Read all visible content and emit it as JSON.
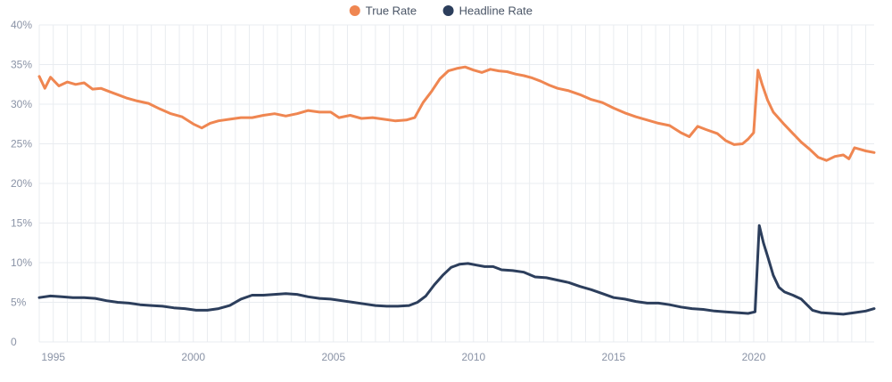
{
  "chart_data": {
    "type": "line",
    "x_unit": "year",
    "xlim": [
      1994.5,
      2024.3
    ],
    "ylim": [
      0,
      40
    ],
    "y_ticks": [
      "0",
      "5%",
      "10%",
      "15%",
      "20%",
      "25%",
      "30%",
      "35%",
      "40%"
    ],
    "x_ticks": [
      "1995",
      "2000",
      "2005",
      "2010",
      "2015",
      "2020"
    ],
    "legend_position": "top-center",
    "grid": true,
    "series": [
      {
        "name": "True Rate",
        "color": "#ef8651",
        "points": [
          [
            1994.5,
            33.5
          ],
          [
            1994.7,
            32.0
          ],
          [
            1994.9,
            33.4
          ],
          [
            1995.2,
            32.3
          ],
          [
            1995.5,
            32.8
          ],
          [
            1995.8,
            32.5
          ],
          [
            1996.1,
            32.7
          ],
          [
            1996.4,
            31.9
          ],
          [
            1996.7,
            32.0
          ],
          [
            1997.0,
            31.6
          ],
          [
            1997.3,
            31.2
          ],
          [
            1997.6,
            30.8
          ],
          [
            1998.0,
            30.4
          ],
          [
            1998.4,
            30.1
          ],
          [
            1998.8,
            29.4
          ],
          [
            1999.2,
            28.8
          ],
          [
            1999.6,
            28.4
          ],
          [
            2000.0,
            27.5
          ],
          [
            2000.3,
            27.0
          ],
          [
            2000.6,
            27.6
          ],
          [
            2000.9,
            27.9
          ],
          [
            2001.3,
            28.1
          ],
          [
            2001.7,
            28.3
          ],
          [
            2002.1,
            28.3
          ],
          [
            2002.5,
            28.6
          ],
          [
            2002.9,
            28.8
          ],
          [
            2003.3,
            28.5
          ],
          [
            2003.7,
            28.8
          ],
          [
            2004.1,
            29.2
          ],
          [
            2004.5,
            29.0
          ],
          [
            2004.9,
            29.0
          ],
          [
            2005.2,
            28.3
          ],
          [
            2005.6,
            28.6
          ],
          [
            2006.0,
            28.2
          ],
          [
            2006.4,
            28.3
          ],
          [
            2006.8,
            28.1
          ],
          [
            2007.2,
            27.9
          ],
          [
            2007.6,
            28.0
          ],
          [
            2007.9,
            28.3
          ],
          [
            2008.2,
            30.2
          ],
          [
            2008.5,
            31.6
          ],
          [
            2008.8,
            33.2
          ],
          [
            2009.1,
            34.2
          ],
          [
            2009.4,
            34.5
          ],
          [
            2009.7,
            34.7
          ],
          [
            2010.0,
            34.3
          ],
          [
            2010.3,
            34.0
          ],
          [
            2010.6,
            34.4
          ],
          [
            2010.9,
            34.2
          ],
          [
            2011.2,
            34.1
          ],
          [
            2011.5,
            33.8
          ],
          [
            2011.8,
            33.6
          ],
          [
            2012.1,
            33.3
          ],
          [
            2012.4,
            32.9
          ],
          [
            2012.7,
            32.4
          ],
          [
            2013.0,
            32.0
          ],
          [
            2013.4,
            31.7
          ],
          [
            2013.8,
            31.2
          ],
          [
            2014.2,
            30.6
          ],
          [
            2014.6,
            30.2
          ],
          [
            2015.0,
            29.5
          ],
          [
            2015.4,
            28.9
          ],
          [
            2015.8,
            28.4
          ],
          [
            2016.2,
            28.0
          ],
          [
            2016.6,
            27.6
          ],
          [
            2017.0,
            27.3
          ],
          [
            2017.4,
            26.4
          ],
          [
            2017.7,
            25.9
          ],
          [
            2018.0,
            27.2
          ],
          [
            2018.3,
            26.8
          ],
          [
            2018.7,
            26.3
          ],
          [
            2019.0,
            25.4
          ],
          [
            2019.3,
            24.9
          ],
          [
            2019.6,
            25.0
          ],
          [
            2019.8,
            25.6
          ],
          [
            2020.0,
            26.4
          ],
          [
            2020.15,
            34.3
          ],
          [
            2020.3,
            32.5
          ],
          [
            2020.5,
            30.5
          ],
          [
            2020.7,
            29.0
          ],
          [
            2020.9,
            28.2
          ],
          [
            2021.1,
            27.4
          ],
          [
            2021.4,
            26.3
          ],
          [
            2021.7,
            25.2
          ],
          [
            2022.0,
            24.3
          ],
          [
            2022.3,
            23.3
          ],
          [
            2022.6,
            22.9
          ],
          [
            2022.9,
            23.4
          ],
          [
            2023.2,
            23.6
          ],
          [
            2023.4,
            23.1
          ],
          [
            2023.6,
            24.5
          ],
          [
            2023.8,
            24.3
          ],
          [
            2024.0,
            24.1
          ],
          [
            2024.3,
            23.9
          ]
        ]
      },
      {
        "name": "Headline Rate",
        "color": "#2c3e5c",
        "points": [
          [
            1994.5,
            5.6
          ],
          [
            1994.9,
            5.8
          ],
          [
            1995.3,
            5.7
          ],
          [
            1995.7,
            5.6
          ],
          [
            1996.1,
            5.6
          ],
          [
            1996.5,
            5.5
          ],
          [
            1996.9,
            5.2
          ],
          [
            1997.3,
            5.0
          ],
          [
            1997.7,
            4.9
          ],
          [
            1998.1,
            4.7
          ],
          [
            1998.5,
            4.6
          ],
          [
            1998.9,
            4.5
          ],
          [
            1999.3,
            4.3
          ],
          [
            1999.7,
            4.2
          ],
          [
            2000.1,
            4.0
          ],
          [
            2000.5,
            4.0
          ],
          [
            2000.9,
            4.2
          ],
          [
            2001.3,
            4.6
          ],
          [
            2001.7,
            5.4
          ],
          [
            2002.1,
            5.9
          ],
          [
            2002.5,
            5.9
          ],
          [
            2002.9,
            6.0
          ],
          [
            2003.3,
            6.1
          ],
          [
            2003.7,
            6.0
          ],
          [
            2004.1,
            5.7
          ],
          [
            2004.5,
            5.5
          ],
          [
            2004.9,
            5.4
          ],
          [
            2005.3,
            5.2
          ],
          [
            2005.7,
            5.0
          ],
          [
            2006.1,
            4.8
          ],
          [
            2006.5,
            4.6
          ],
          [
            2006.9,
            4.5
          ],
          [
            2007.3,
            4.5
          ],
          [
            2007.7,
            4.6
          ],
          [
            2008.0,
            5.0
          ],
          [
            2008.3,
            5.8
          ],
          [
            2008.6,
            7.2
          ],
          [
            2008.9,
            8.4
          ],
          [
            2009.2,
            9.4
          ],
          [
            2009.5,
            9.8
          ],
          [
            2009.8,
            9.9
          ],
          [
            2010.1,
            9.7
          ],
          [
            2010.4,
            9.5
          ],
          [
            2010.7,
            9.5
          ],
          [
            2011.0,
            9.1
          ],
          [
            2011.4,
            9.0
          ],
          [
            2011.8,
            8.8
          ],
          [
            2012.2,
            8.2
          ],
          [
            2012.6,
            8.1
          ],
          [
            2013.0,
            7.8
          ],
          [
            2013.4,
            7.5
          ],
          [
            2013.8,
            7.0
          ],
          [
            2014.2,
            6.6
          ],
          [
            2014.6,
            6.1
          ],
          [
            2015.0,
            5.6
          ],
          [
            2015.4,
            5.4
          ],
          [
            2015.8,
            5.1
          ],
          [
            2016.2,
            4.9
          ],
          [
            2016.6,
            4.9
          ],
          [
            2017.0,
            4.7
          ],
          [
            2017.4,
            4.4
          ],
          [
            2017.8,
            4.2
          ],
          [
            2018.2,
            4.1
          ],
          [
            2018.6,
            3.9
          ],
          [
            2019.0,
            3.8
          ],
          [
            2019.4,
            3.7
          ],
          [
            2019.8,
            3.6
          ],
          [
            2020.05,
            3.8
          ],
          [
            2020.2,
            14.7
          ],
          [
            2020.35,
            12.5
          ],
          [
            2020.5,
            10.8
          ],
          [
            2020.7,
            8.4
          ],
          [
            2020.9,
            6.9
          ],
          [
            2021.1,
            6.3
          ],
          [
            2021.4,
            5.9
          ],
          [
            2021.7,
            5.4
          ],
          [
            2021.9,
            4.7
          ],
          [
            2022.1,
            4.0
          ],
          [
            2022.4,
            3.7
          ],
          [
            2022.8,
            3.6
          ],
          [
            2023.2,
            3.5
          ],
          [
            2023.6,
            3.7
          ],
          [
            2024.0,
            3.9
          ],
          [
            2024.3,
            4.2
          ]
        ]
      }
    ]
  }
}
